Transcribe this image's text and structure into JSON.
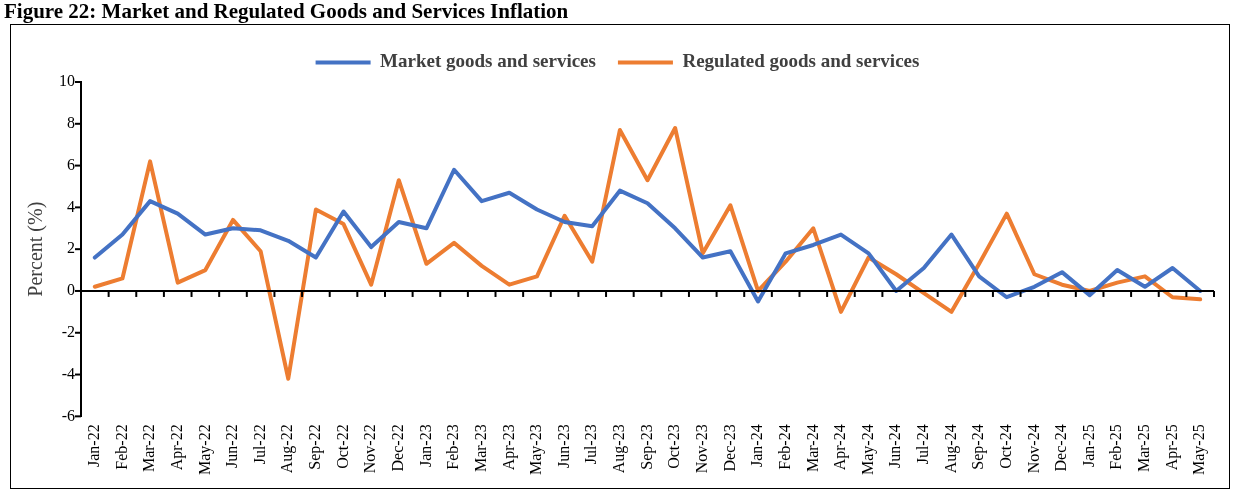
{
  "chart_data": {
    "type": "line",
    "title": "Figure 22: Market and Regulated Goods and Services Inflation",
    "ylabel": "Percent (%)",
    "categories": [
      "Jan-22",
      "Feb-22",
      "Mar-22",
      "Apr-22",
      "May-22",
      "Jun-22",
      "Jul-22",
      "Aug-22",
      "Sep-22",
      "Oct-22",
      "Nov-22",
      "Dec-22",
      "Jan-23",
      "Feb-23",
      "Mar-23",
      "Apr-23",
      "May-23",
      "Jun-23",
      "Jul-23",
      "Aug-23",
      "Sep-23",
      "Oct-23",
      "Nov-23",
      "Dec-23",
      "Jan-24",
      "Feb-24",
      "Mar-24",
      "Apr-24",
      "May-24",
      "Jun-24",
      "Jul-24",
      "Aug-24",
      "Sep-24",
      "Oct-24",
      "Nov-24",
      "Dec-24",
      "Jan-25",
      "Feb-25",
      "Mar-25",
      "Apr-25",
      "May-25"
    ],
    "series": [
      {
        "name": "Market goods and services",
        "color": "#4472c4",
        "values": [
          1.6,
          2.7,
          4.3,
          3.7,
          2.7,
          3.0,
          2.9,
          2.4,
          1.6,
          3.8,
          2.1,
          3.3,
          3.0,
          5.8,
          4.3,
          4.7,
          3.9,
          3.3,
          3.1,
          4.8,
          4.2,
          3.0,
          1.6,
          1.9,
          -0.5,
          1.8,
          2.2,
          2.7,
          1.8,
          0.0,
          1.1,
          2.7,
          0.7,
          -0.3,
          0.2,
          0.9,
          -0.2,
          1.0,
          0.2,
          1.1,
          0.0
        ]
      },
      {
        "name": "Regulated goods and services",
        "color": "#ed7d31",
        "values": [
          0.2,
          0.6,
          6.2,
          0.4,
          1.0,
          3.4,
          1.9,
          -4.2,
          3.9,
          3.2,
          0.3,
          5.3,
          1.3,
          2.3,
          1.2,
          0.3,
          0.7,
          3.6,
          1.4,
          7.7,
          5.3,
          7.8,
          1.8,
          4.1,
          0.0,
          1.4,
          3.0,
          -1.0,
          1.6,
          0.8,
          -0.1,
          -1.0,
          1.3,
          3.7,
          0.8,
          0.3,
          0.0,
          0.4,
          0.7,
          -0.3,
          -0.4
        ]
      }
    ],
    "ref_lines": [
      {
        "axis": "y",
        "value": 0,
        "color": "#000000",
        "line_style": "solid"
      }
    ],
    "ylim": [
      -6,
      10
    ],
    "yticks": [
      -6,
      -4,
      -2,
      0,
      2,
      4,
      6,
      8,
      10
    ],
    "grid": false,
    "legend": "top",
    "marker": "none",
    "line_style": "solid"
  }
}
